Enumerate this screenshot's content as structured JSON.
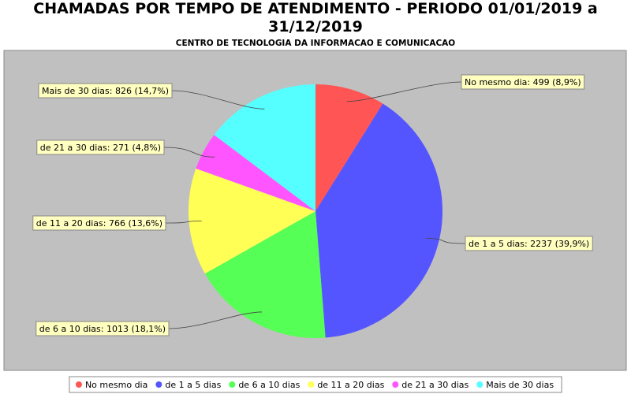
{
  "chart_data": {
    "type": "pie",
    "title": "CHAMADAS POR TEMPO DE ATENDIMENTO - PERIODO 01/01/2019 a 31/12/2019",
    "subtitle": "CENTRO DE TECNOLOGIA DA INFORMACAO E COMUNICACAO",
    "categories": [
      "No mesmo dia",
      "de 1 a 5 dias",
      "de 6 a 10 dias",
      "de 11 a 20 dias",
      "de 21 a 30 dias",
      "Mais de 30 dias"
    ],
    "values": [
      499,
      2237,
      1013,
      766,
      271,
      826
    ],
    "value_labels": [
      "No mesmo dia: 499 (8,9%)",
      "de 1 a 5 dias: 2237 (39,9%)",
      "de 6 a 10 dias: 1013 (18,1%)",
      "de 11 a 20 dias: 766 (13,6%)",
      "de 21 a 30 dias: 271 (4,8%)",
      "Mais de 30 dias: 826 (14,7%)"
    ],
    "colors": [
      "#ff5555",
      "#5555ff",
      "#55ff55",
      "#ffff55",
      "#ff55ff",
      "#55ffff"
    ],
    "legend": "bottom"
  }
}
